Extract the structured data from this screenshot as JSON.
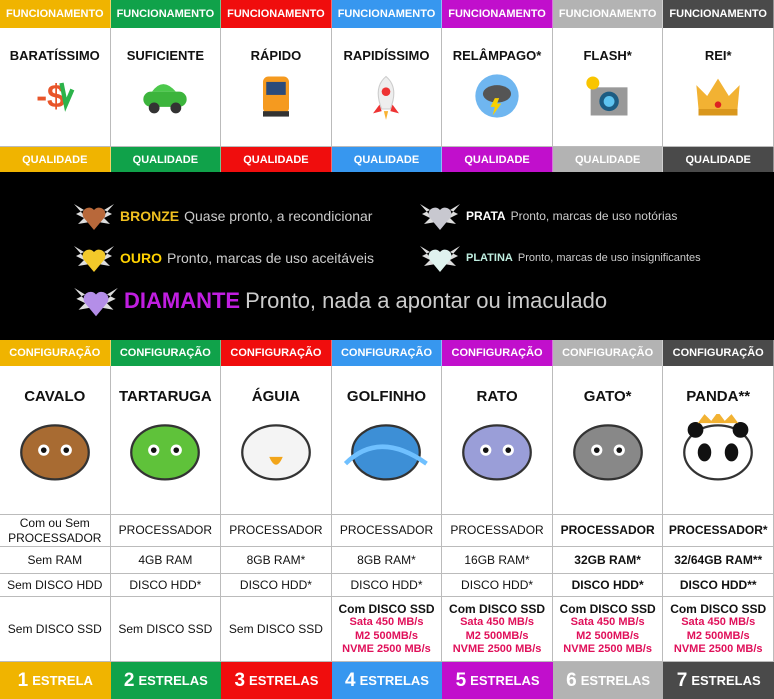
{
  "colors": [
    "#f0b400",
    "#10a24a",
    "#f00d0d",
    "#3797ef",
    "#c10fcc",
    "#b3b3b3",
    "#4a4a4a"
  ],
  "columns": [
    {
      "funcionamento": "FUNCIONAMENTO",
      "title": "BARATÍSSIMO",
      "icon": "discount-dollar-icon",
      "qualidade": "QUALIDADE",
      "configuracao": "CONFIGURAÇÃO",
      "animal": "CAVALO",
      "animal_icon": "horse-icon",
      "processador": "Com ou Sem PROCESSADOR",
      "ram": "Sem RAM",
      "hdd": "Sem DISCO HDD",
      "ssd": "Sem DISCO SSD",
      "ssd_specs": [],
      "stars_n": "1",
      "stars_label": "ESTRELA",
      "bold": false
    },
    {
      "funcionamento": "FUNCIONAMENTO",
      "title": "SUFICIENTE",
      "icon": "car-icon",
      "qualidade": "QUALIDADE",
      "configuracao": "CONFIGURAÇÃO",
      "animal": "TARTARUGA",
      "animal_icon": "turtle-icon",
      "processador": "PROCESSADOR",
      "ram": "4GB RAM",
      "hdd": "DISCO HDD*",
      "ssd": "Sem DISCO SSD",
      "ssd_specs": [],
      "stars_n": "2",
      "stars_label": "ESTRELAS",
      "bold": false
    },
    {
      "funcionamento": "FUNCIONAMENTO",
      "title": "RÁPIDO",
      "icon": "train-icon",
      "qualidade": "QUALIDADE",
      "configuracao": "CONFIGURAÇÃO",
      "animal": "ÁGUIA",
      "animal_icon": "eagle-icon",
      "processador": "PROCESSADOR",
      "ram": "8GB RAM*",
      "hdd": "DISCO HDD*",
      "ssd": "Sem DISCO SSD",
      "ssd_specs": [],
      "stars_n": "3",
      "stars_label": "ESTRELAS",
      "bold": false
    },
    {
      "funcionamento": "FUNCIONAMENTO",
      "title": "RAPIDÍSSIMO",
      "icon": "rocket-icon",
      "qualidade": "QUALIDADE",
      "configuracao": "CONFIGURAÇÃO",
      "animal": "GOLFINHO",
      "animal_icon": "dolphin-icon",
      "processador": "PROCESSADOR",
      "ram": "8GB RAM*",
      "hdd": "DISCO HDD*",
      "ssd": "Com DISCO SSD",
      "ssd_specs": [
        "Sata 450 MB/s",
        "M2 500MB/s",
        "NVME 2500 MB/s"
      ],
      "stars_n": "4",
      "stars_label": "ESTRELAS",
      "bold": false
    },
    {
      "funcionamento": "FUNCIONAMENTO",
      "title": "RELÂMPAGO*",
      "icon": "lightning-cloud-icon",
      "qualidade": "QUALIDADE",
      "configuracao": "CONFIGURAÇÃO",
      "animal": "RATO",
      "animal_icon": "mouse-icon",
      "processador": "PROCESSADOR",
      "ram": "16GB RAM*",
      "hdd": "DISCO HDD*",
      "ssd": "Com DISCO SSD",
      "ssd_specs": [
        "Sata 450 MB/s",
        "M2 500MB/s",
        "NVME 2500 MB/s"
      ],
      "stars_n": "5",
      "stars_label": "ESTRELAS",
      "bold": false
    },
    {
      "funcionamento": "FUNCIONAMENTO",
      "title": "FLASH*",
      "icon": "camera-flash-icon",
      "qualidade": "QUALIDADE",
      "configuracao": "CONFIGURAÇÃO",
      "animal": "GATO*",
      "animal_icon": "cat-icon",
      "processador": "PROCESSADOR",
      "ram": "32GB RAM*",
      "hdd": "DISCO HDD*",
      "ssd": "Com DISCO SSD",
      "ssd_specs": [
        "Sata 450 MB/s",
        "M2 500MB/s",
        "NVME 2500 MB/s"
      ],
      "stars_n": "6",
      "stars_label": "ESTRELAS",
      "bold": true
    },
    {
      "funcionamento": "FUNCIONAMENTO",
      "title": "REI*",
      "icon": "crown-icon",
      "qualidade": "QUALIDADE",
      "configuracao": "CONFIGURAÇÃO",
      "animal": "PANDA**",
      "animal_icon": "panda-icon",
      "processador": "PROCESSADOR*",
      "ram": "32/64GB RAM**",
      "hdd": "DISCO HDD**",
      "ssd": "Com DISCO SSD",
      "ssd_specs": [
        "Sata 450 MB/s",
        "M2 500MB/s",
        "NVME 2500 MB/s"
      ],
      "stars_n": "7",
      "stars_label": "ESTRELAS",
      "bold": true
    }
  ],
  "grades": [
    {
      "name": "BRONZE",
      "text": "Quase pronto, a recondicionar",
      "color": "#f0c020",
      "heart": "#b8683a"
    },
    {
      "name": "PRATA",
      "text": "Pronto, marcas de uso notórias",
      "color": "#ffffff",
      "heart": "#c8c8d0"
    },
    {
      "name": "OURO",
      "text": "Pronto, marcas de uso aceitáveis",
      "color": "#ffd200",
      "heart": "#f3c92a"
    },
    {
      "name": "PLATINA",
      "text": "Pronto, marcas de uso insignificantes",
      "color": "#bfeee0",
      "heart": "#dff2ee"
    },
    {
      "name": "DIAMANTE",
      "text": "Pronto, nada a apontar ou imaculado",
      "color": "#c01ee0",
      "heart": "#b48ee8"
    }
  ]
}
